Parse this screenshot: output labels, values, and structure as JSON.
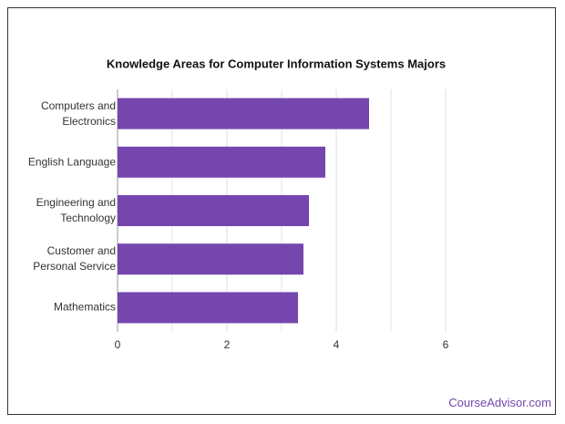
{
  "chart_data": {
    "type": "bar",
    "orientation": "horizontal",
    "title": "Knowledge Areas for Computer Information Systems Majors",
    "categories": [
      "Computers and Electronics",
      "English Language",
      "Engineering and Technology",
      "Customer and Personal Service",
      "Mathematics"
    ],
    "values": [
      4.6,
      3.8,
      3.5,
      3.4,
      3.3
    ],
    "color": "#7446ae",
    "xlim": [
      0,
      6
    ],
    "xticks": [
      0,
      2,
      4,
      6
    ],
    "minor_xticks": [
      1,
      3,
      5
    ],
    "grid": true
  },
  "footer": {
    "source": "CourseAdvisor.com"
  }
}
